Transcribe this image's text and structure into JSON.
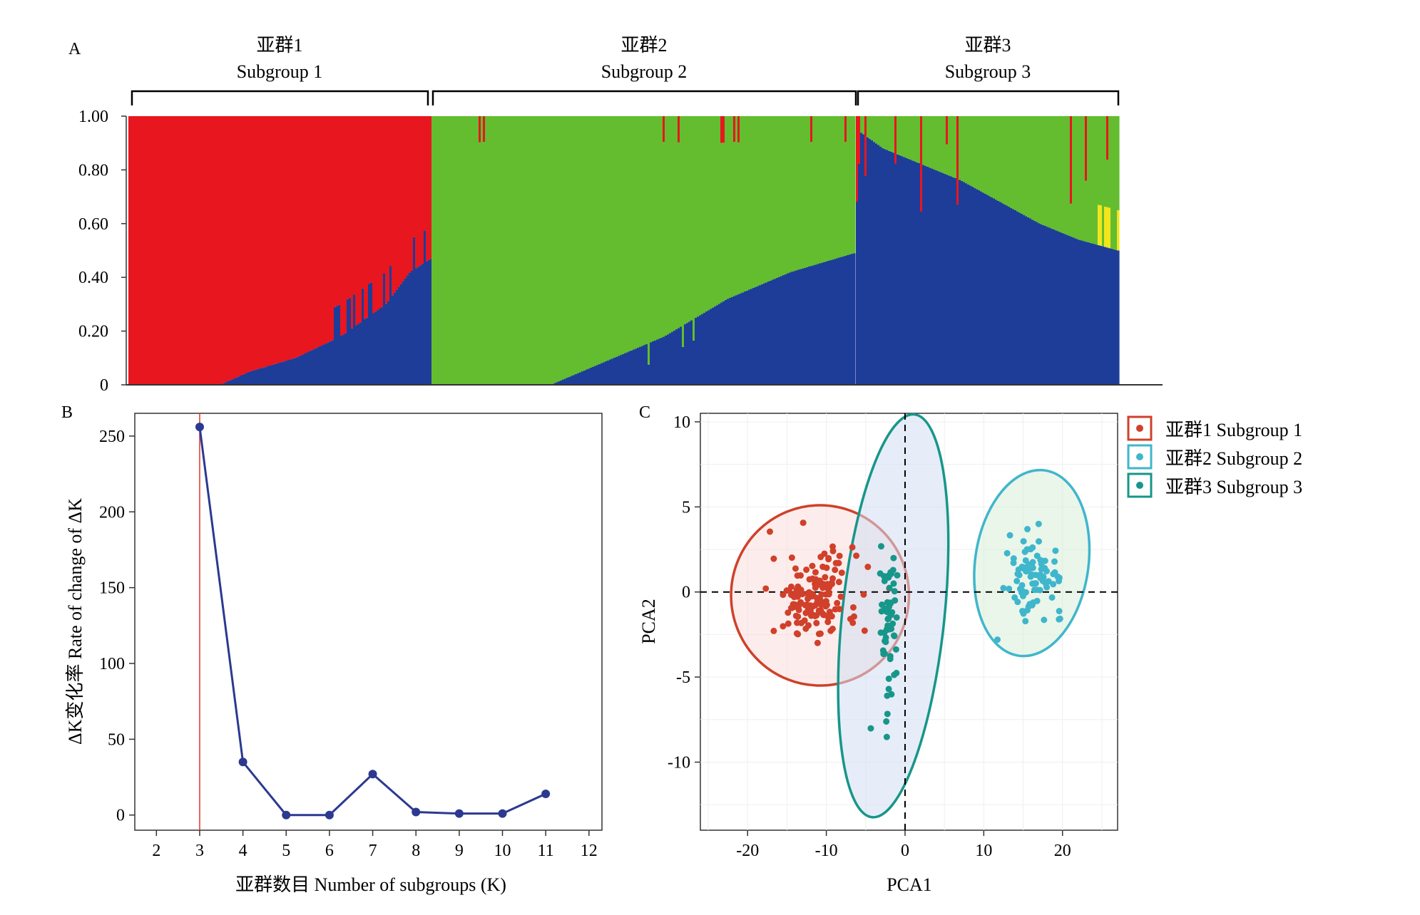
{
  "panel_a": {
    "letter": "A",
    "groups": [
      {
        "zh": "亚群1",
        "en": "Subgroup 1"
      },
      {
        "zh": "亚群2",
        "en": "Subgroup 2"
      },
      {
        "zh": "亚群3",
        "en": "Subgroup 3"
      }
    ],
    "y_ticks": [
      "1.00",
      "0.80",
      "0.60",
      "0.40",
      "0.20",
      "0"
    ]
  },
  "panel_b": {
    "letter": "B",
    "xlabel": "亚群数目 Number of subgroups (K)",
    "ylabel": "ΔK变化率 Rate of change of ΔK",
    "x_ticks": [
      "2",
      "3",
      "4",
      "5",
      "6",
      "7",
      "8",
      "9",
      "10",
      "11",
      "12"
    ],
    "y_ticks": [
      "250",
      "200",
      "150",
      "100",
      "50",
      "0"
    ]
  },
  "panel_c": {
    "letter": "C",
    "xlabel": "PCA1",
    "ylabel": "PCA2",
    "x_ticks": [
      "-20",
      "-10",
      "0",
      "10",
      "20"
    ],
    "y_ticks": [
      "10",
      "5",
      "0",
      "-5",
      "-10"
    ],
    "legend": [
      "亚群1 Subgroup 1",
      "亚群2 Subgroup 2",
      "亚群3 Subgroup 3"
    ]
  },
  "colors": {
    "red": "#e8161f",
    "green": "#63bd2f",
    "blue": "#1d3d99",
    "yellow": "#f2e51c",
    "line_blue": "#2b3990",
    "vline": "#e2332a",
    "pca_red": "#d0402a",
    "pca_cyan": "#3fb6cc",
    "pca_teal": "#17968a"
  },
  "chart_data": [
    {
      "type": "bar",
      "title": "",
      "description_ref": "STRUCTURE admixture bar plot, K=3, stacked membership coefficients per accession",
      "ylim": [
        0,
        1
      ],
      "series": [
        {
          "name": "Subgroup 1",
          "color": "red"
        },
        {
          "name": "Subgroup 2",
          "color": "green"
        },
        {
          "name": "Subgroup 3",
          "color": "blue"
        }
      ],
      "groups": [
        {
          "name": "Subgroup 1",
          "blue_profile": [
            [
              0.0,
              0.0
            ],
            [
              0.3,
              0.0
            ],
            [
              0.4,
              0.05
            ],
            [
              0.55,
              0.1
            ],
            [
              0.7,
              0.18
            ],
            [
              0.85,
              0.3
            ],
            [
              0.93,
              0.42
            ],
            [
              1.0,
              0.47
            ]
          ]
        },
        {
          "name": "Subgroup 2",
          "blue_profile": [
            [
              0.0,
              0.0
            ],
            [
              0.28,
              0.0
            ],
            [
              0.4,
              0.08
            ],
            [
              0.55,
              0.18
            ],
            [
              0.7,
              0.32
            ],
            [
              0.85,
              0.42
            ],
            [
              1.0,
              0.49
            ]
          ]
        },
        {
          "name": "Subgroup 3",
          "blue_profile": [
            [
              0.0,
              0.95
            ],
            [
              0.1,
              0.88
            ],
            [
              0.25,
              0.82
            ],
            [
              0.4,
              0.76
            ],
            [
              0.55,
              0.68
            ],
            [
              0.7,
              0.6
            ],
            [
              0.85,
              0.54
            ],
            [
              1.0,
              0.5
            ]
          ]
        }
      ]
    },
    {
      "type": "line",
      "xlabel": "亚群数目 Number of subgroups (K)",
      "ylabel": "ΔK变化率 Rate of change of ΔK",
      "xlim": [
        1.5,
        12.3
      ],
      "ylim": [
        -10,
        265
      ],
      "x": [
        3,
        4,
        5,
        6,
        7,
        8,
        9,
        10,
        11
      ],
      "values": [
        256,
        35,
        0,
        0,
        27,
        2,
        1,
        1,
        14
      ],
      "vline_x": 3
    },
    {
      "type": "scatter",
      "xlabel": "PCA1",
      "ylabel": "PCA2",
      "xlim": [
        -26,
        27
      ],
      "ylim": [
        -14,
        10.5
      ],
      "ellipses": [
        {
          "series": "亚群1 Subgroup 1",
          "cx": -10.8,
          "cy": -0.2,
          "rx": 11.3,
          "ry": 5.3,
          "angle": 0
        },
        {
          "series": "亚群2 Subgroup 2",
          "cx": 16.1,
          "cy": 1.7,
          "rx": 7.2,
          "ry": 5.5,
          "angle": 8
        },
        {
          "series": "亚群3 Subgroup 3",
          "cx": -1.5,
          "cy": -1.4,
          "rx": 6.5,
          "ry": 11.9,
          "angle": 6
        }
      ],
      "clusters": [
        {
          "series": "亚群1 Subgroup 1",
          "center": [
            -11.5,
            -0.3
          ],
          "spread": [
            5.0,
            2.4
          ],
          "count": 150
        },
        {
          "series": "亚群2 Subgroup 2",
          "center": [
            16.5,
            1.0
          ],
          "spread": [
            3.2,
            2.0
          ],
          "count": 85
        },
        {
          "series": "亚群3 Subgroup 3",
          "center": [
            -2.0,
            -2.0
          ],
          "spread": [
            1.0,
            4.5
          ],
          "count": 60
        }
      ]
    }
  ]
}
